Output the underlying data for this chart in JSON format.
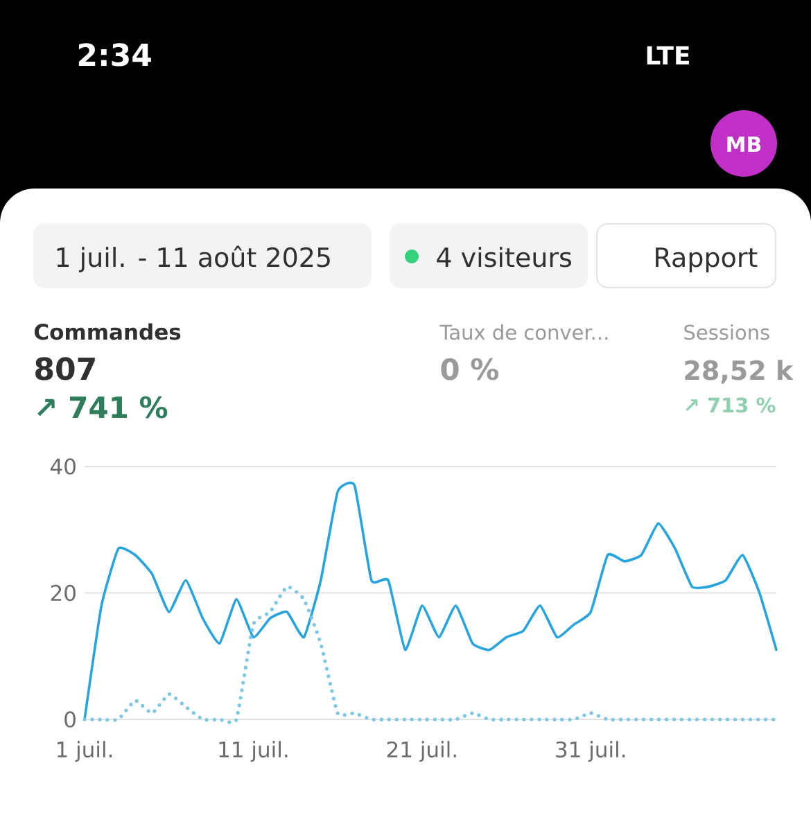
{
  "chart_data": {
    "type": "line",
    "title": "Commandes",
    "annotations": [
      "2:34",
      "LTE",
      "1 juil. - 11 août 2025",
      "4 visiteurs",
      "Rapport",
      "807",
      "↗ 741 %",
      "Taux de conver...",
      "0 %",
      "Sessions",
      "28,52 k",
      "↗ 713 %",
      "MB"
    ],
    "x": [
      "2025-07-01",
      "2025-07-02",
      "2025-07-03",
      "2025-07-04",
      "2025-07-05",
      "2025-07-06",
      "2025-07-07",
      "2025-07-08",
      "2025-07-09",
      "2025-07-10",
      "2025-07-11",
      "2025-07-12",
      "2025-07-13",
      "2025-07-14",
      "2025-07-15",
      "2025-07-16",
      "2025-07-17",
      "2025-07-18",
      "2025-07-19",
      "2025-07-20",
      "2025-07-21",
      "2025-07-22",
      "2025-07-23",
      "2025-07-24",
      "2025-07-25",
      "2025-07-26",
      "2025-07-27",
      "2025-07-28",
      "2025-07-29",
      "2025-07-30",
      "2025-07-31",
      "2025-08-01",
      "2025-08-02",
      "2025-08-03",
      "2025-08-04",
      "2025-08-05",
      "2025-08-06",
      "2025-08-07",
      "2025-08-08",
      "2025-08-09",
      "2025-08-10",
      "2025-08-11"
    ],
    "series": [
      {
        "color": "#27a3dd",
        "line_style": "solid",
        "values": [
          0,
          18,
          27,
          26,
          23,
          17,
          22,
          16,
          12,
          19,
          13,
          16,
          17,
          13,
          22,
          36,
          37,
          22,
          22,
          11,
          18,
          13,
          18,
          12,
          11,
          13,
          14,
          18,
          13,
          15,
          17,
          26,
          25,
          26,
          31,
          27,
          21,
          21,
          22,
          26,
          20,
          11
        ]
      },
      {
        "color": "#7cc6e6",
        "line_style": "dotted",
        "values": [
          0,
          0,
          0,
          3,
          1,
          4,
          2,
          0,
          0,
          0,
          15,
          17,
          21,
          19,
          12,
          1,
          1,
          0,
          0,
          0,
          0,
          0,
          0,
          1,
          0,
          0,
          0,
          0,
          0,
          0,
          1,
          0,
          0,
          0,
          0,
          0,
          0,
          0,
          0,
          0,
          0,
          0
        ]
      }
    ],
    "xlim": [
      "2025-07-01",
      "2025-08-11"
    ],
    "xticks": [
      {
        "value": "2025-07-01",
        "label": "1 juil."
      },
      {
        "value": "2025-07-11",
        "label": "11 juil."
      },
      {
        "value": "2025-07-21",
        "label": "21 juil."
      },
      {
        "value": "2025-07-31",
        "label": "31 juil."
      }
    ],
    "ylim": [
      0,
      40
    ],
    "yticks": [
      0,
      20,
      40
    ],
    "grid": "y",
    "marker": "none"
  }
}
